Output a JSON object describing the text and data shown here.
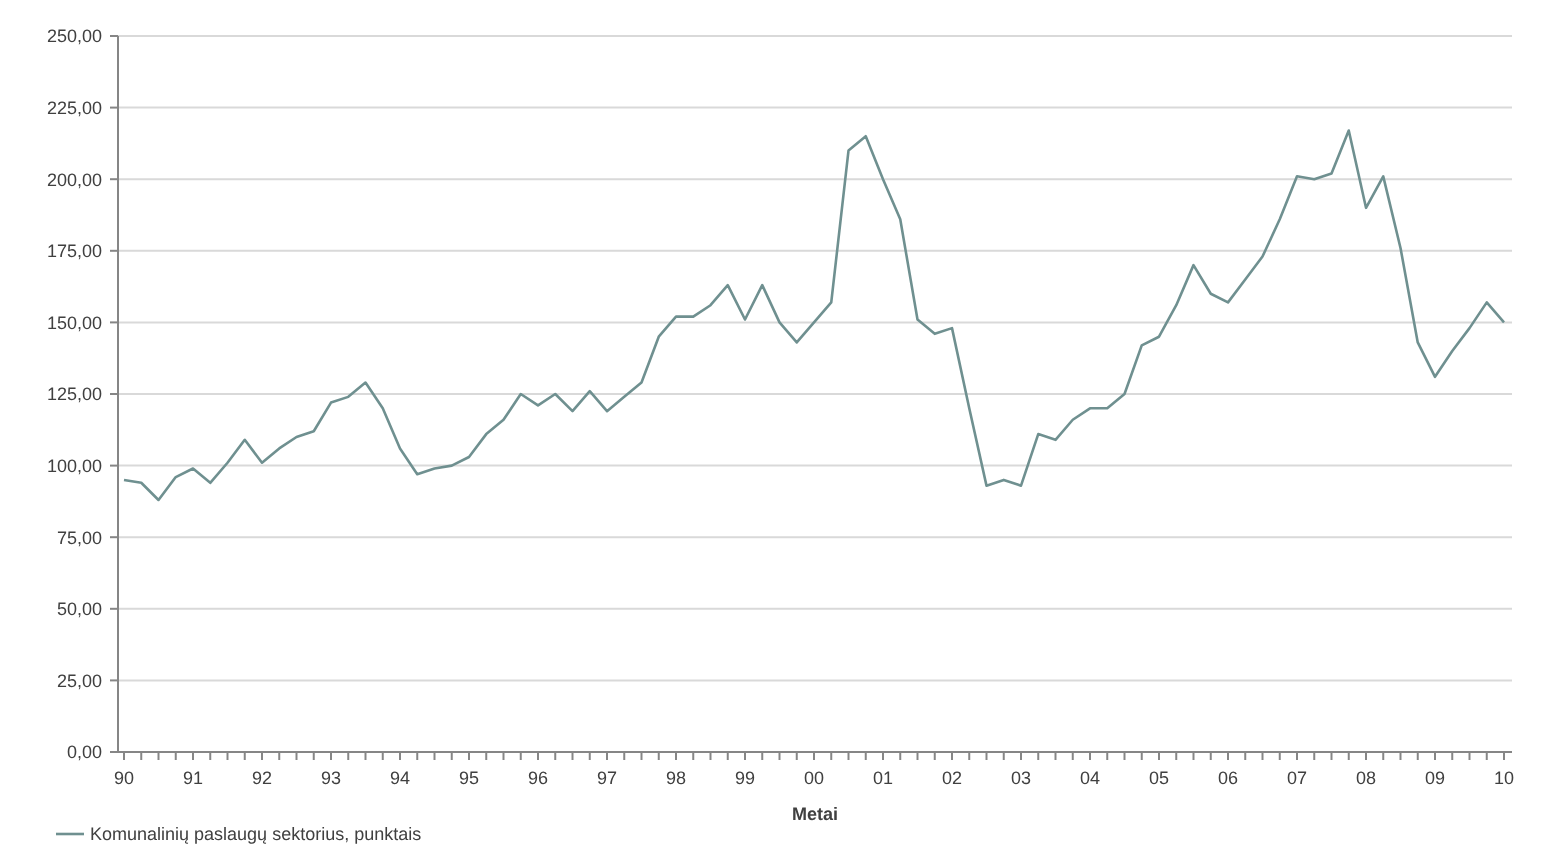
{
  "chart_data": {
    "type": "line",
    "xlabel": "Metai",
    "categories": [
      "90",
      null,
      null,
      null,
      "91",
      null,
      null,
      null,
      "92",
      null,
      null,
      null,
      "93",
      null,
      null,
      null,
      "94",
      null,
      null,
      null,
      "95",
      null,
      null,
      null,
      "96",
      null,
      null,
      null,
      "97",
      null,
      null,
      null,
      "98",
      null,
      null,
      null,
      "99",
      null,
      null,
      null,
      "00",
      null,
      null,
      null,
      "01",
      null,
      null,
      null,
      "02",
      null,
      null,
      null,
      "03",
      null,
      null,
      null,
      "04",
      null,
      null,
      null,
      "05",
      null,
      null,
      null,
      "06",
      null,
      null,
      null,
      "07",
      null,
      null,
      null,
      "08",
      null,
      null,
      null,
      "09",
      null,
      null,
      null,
      "10"
    ],
    "series": [
      {
        "name": "Komunalinių paslaugų sektorius, punktais",
        "color": "#6f9090",
        "values": [
          95,
          94,
          88,
          96,
          99,
          94,
          101,
          109,
          101,
          106,
          110,
          112,
          122,
          124,
          129,
          120,
          106,
          97,
          99,
          100,
          103,
          111,
          116,
          125,
          121,
          125,
          119,
          126,
          119,
          124,
          129,
          145,
          152,
          152,
          156,
          163,
          151,
          163,
          150,
          143,
          150,
          157,
          210,
          215,
          200,
          186,
          151,
          146,
          148,
          120,
          93,
          95,
          93,
          111,
          109,
          116,
          120,
          120,
          125,
          142,
          145,
          156,
          170,
          160,
          157,
          165,
          173,
          186,
          201,
          200,
          202,
          217,
          190,
          201,
          176,
          143,
          131,
          140,
          148,
          157,
          150
        ]
      }
    ],
    "ylim": [
      0,
      250
    ],
    "yticks": [
      {
        "value": 0,
        "label": "0,00"
      },
      {
        "value": 25,
        "label": "25,00"
      },
      {
        "value": 50,
        "label": "50,00"
      },
      {
        "value": 75,
        "label": "75,00"
      },
      {
        "value": 100,
        "label": "100,00"
      },
      {
        "value": 125,
        "label": "125,00"
      },
      {
        "value": 150,
        "label": "150,00"
      },
      {
        "value": 175,
        "label": "175,00"
      },
      {
        "value": 200,
        "label": "200,00"
      },
      {
        "value": 225,
        "label": "225,00"
      },
      {
        "value": 250,
        "label": "250,00"
      }
    ],
    "grid": "y",
    "legend": "bottom",
    "marker": "none",
    "line_style": "solid"
  }
}
